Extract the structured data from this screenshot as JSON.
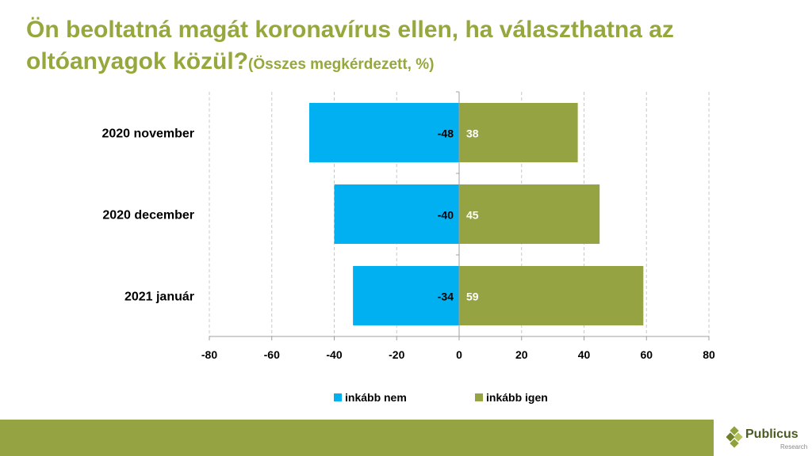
{
  "header": {
    "title_main": "Ön beoltatná magát koronavírus ellen, ha választhatna az oltóanyagok közül?",
    "title_sub": "(Összes megkérdezett, %)"
  },
  "chart_data": {
    "type": "bar",
    "orientation": "horizontal",
    "stacked": "diverging",
    "categories": [
      "2020 november",
      "2020 december",
      "2021 január"
    ],
    "series": [
      {
        "name": "inkább nem",
        "values": [
          -48,
          -40,
          -34
        ],
        "color": "#00b0f0"
      },
      {
        "name": "inkább igen",
        "values": [
          38,
          45,
          59
        ],
        "color": "#96a342"
      }
    ],
    "xlim": [
      -80,
      80
    ],
    "xticks": [
      -80,
      -60,
      -40,
      -20,
      0,
      20,
      40,
      60,
      80
    ],
    "grid": true,
    "legend": "bottom",
    "title": "",
    "xlabel": "",
    "ylabel": ""
  },
  "brand": {
    "name": "Publicus",
    "tagline": "Research",
    "accent": "#96a342"
  }
}
